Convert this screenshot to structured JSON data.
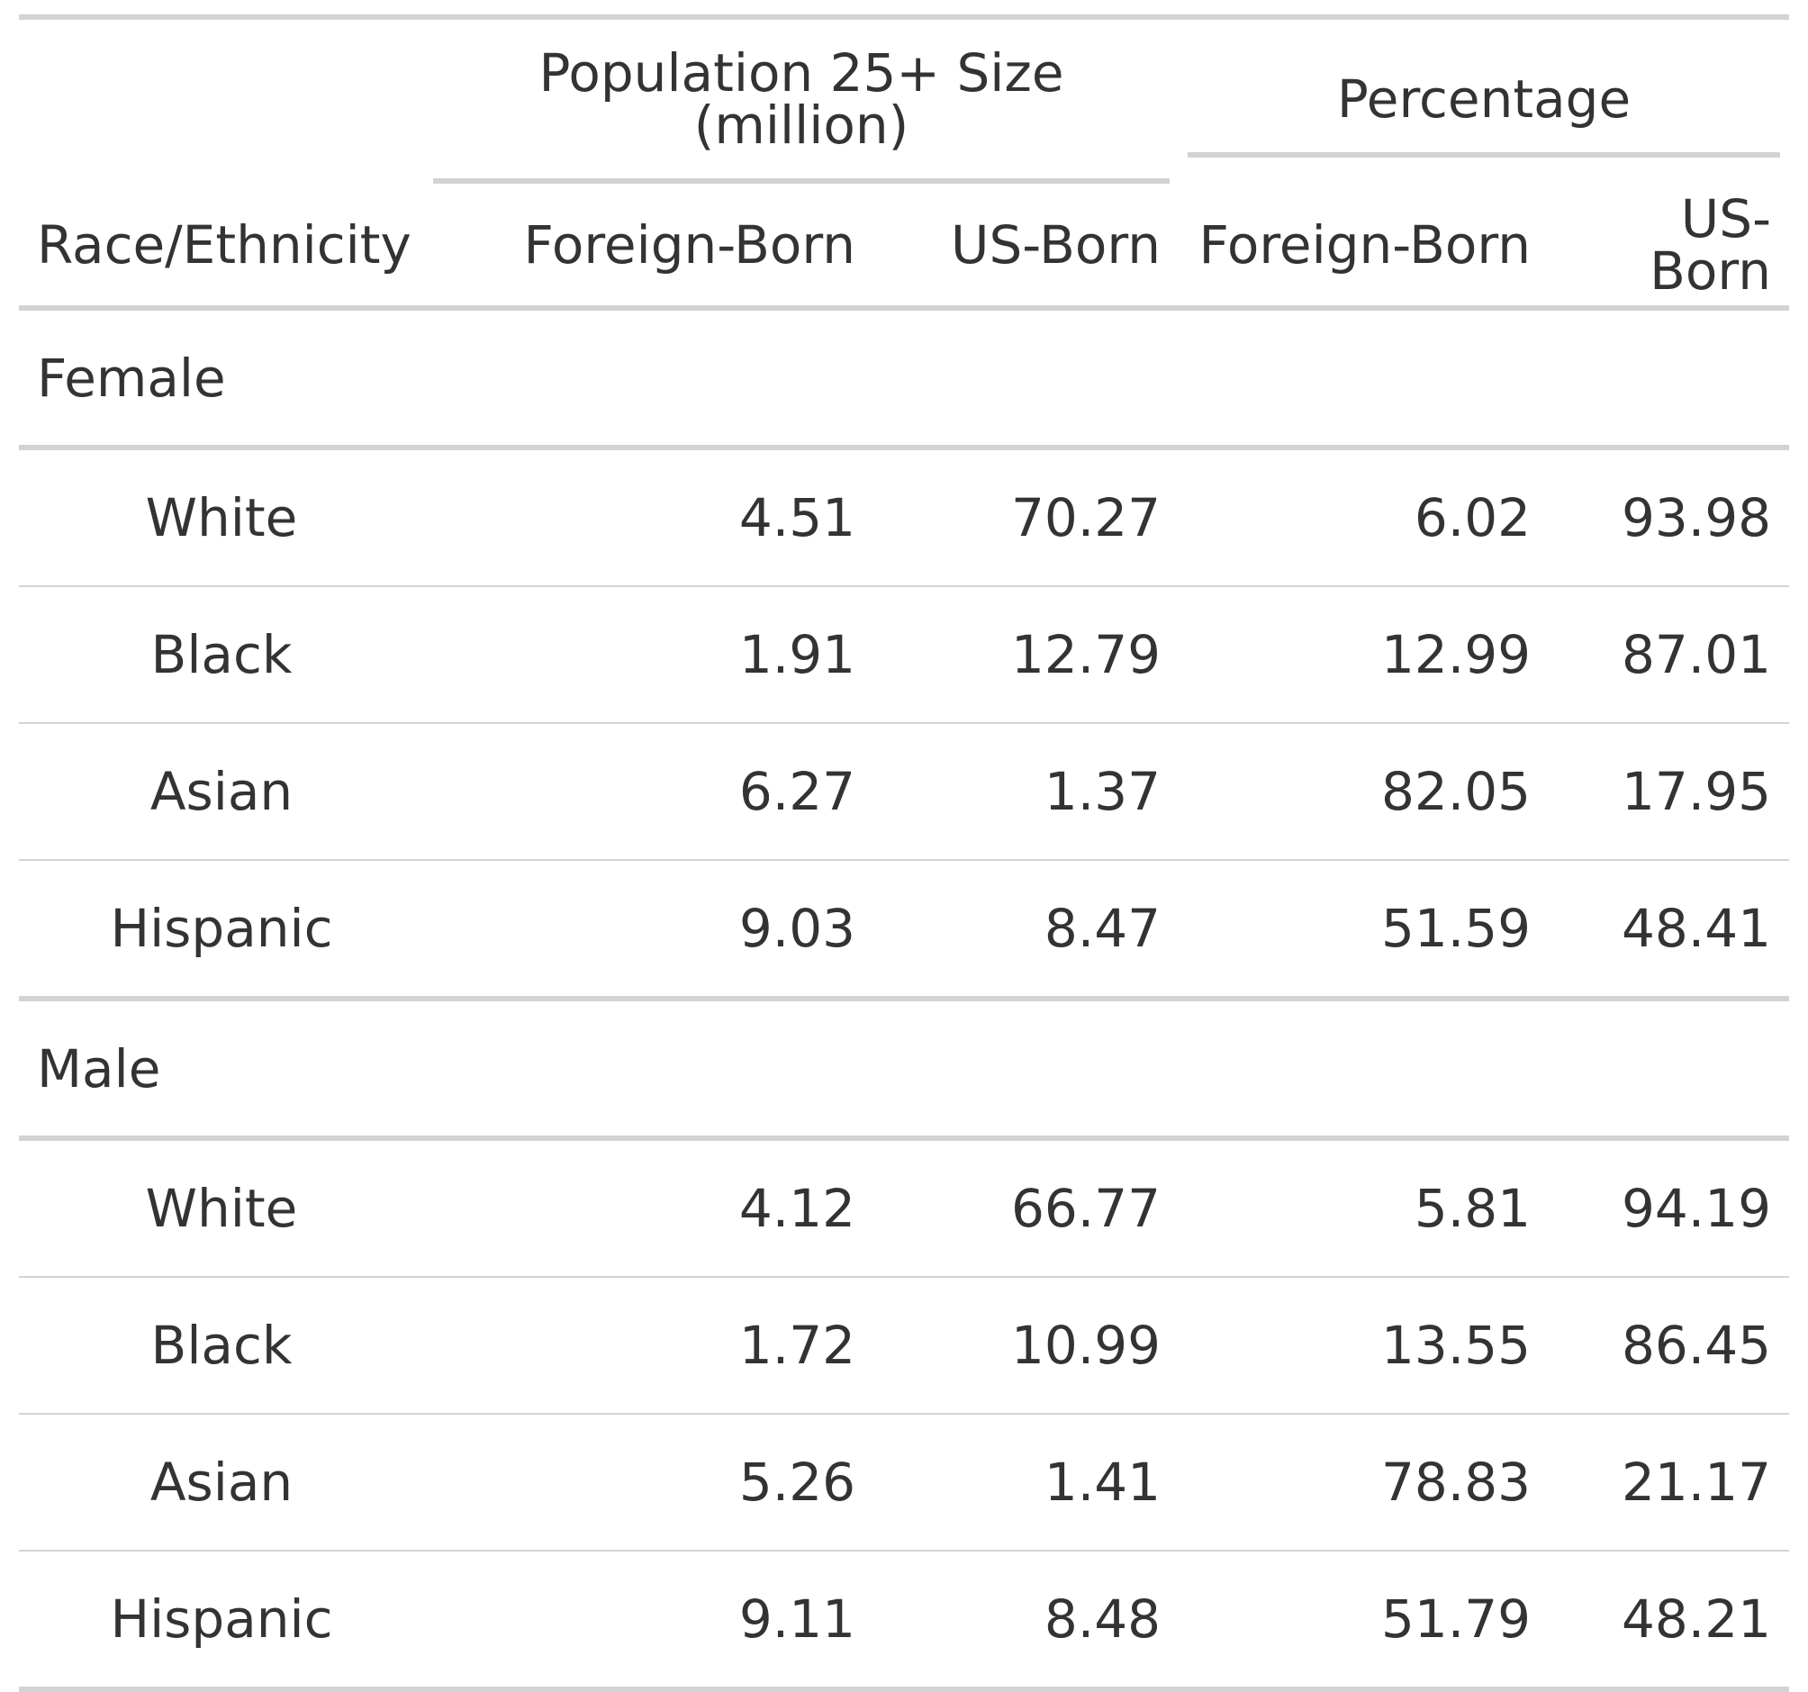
{
  "table": {
    "spanners": {
      "population": "Population 25+ Size (million)",
      "percentage": "Percentage"
    },
    "columns": {
      "race": "Race/Ethnicity",
      "pop_foreign": "Foreign-Born",
      "pop_us": "US-Born",
      "pct_foreign": "Foreign-Born",
      "pct_us": "US-Born"
    },
    "groups": [
      {
        "name": "Female",
        "rows": [
          {
            "race": "White",
            "pop_foreign": "4.51",
            "pop_us": "70.27",
            "pct_foreign": "6.02",
            "pct_us": "93.98"
          },
          {
            "race": "Black",
            "pop_foreign": "1.91",
            "pop_us": "12.79",
            "pct_foreign": "12.99",
            "pct_us": "87.01"
          },
          {
            "race": "Asian",
            "pop_foreign": "6.27",
            "pop_us": "1.37",
            "pct_foreign": "82.05",
            "pct_us": "17.95"
          },
          {
            "race": "Hispanic",
            "pop_foreign": "9.03",
            "pop_us": "8.47",
            "pct_foreign": "51.59",
            "pct_us": "48.41"
          }
        ]
      },
      {
        "name": "Male",
        "rows": [
          {
            "race": "White",
            "pop_foreign": "4.12",
            "pop_us": "66.77",
            "pct_foreign": "5.81",
            "pct_us": "94.19"
          },
          {
            "race": "Black",
            "pop_foreign": "1.72",
            "pop_us": "10.99",
            "pct_foreign": "13.55",
            "pct_us": "86.45"
          },
          {
            "race": "Asian",
            "pop_foreign": "5.26",
            "pop_us": "1.41",
            "pct_foreign": "78.83",
            "pct_us": "21.17"
          },
          {
            "race": "Hispanic",
            "pop_foreign": "9.11",
            "pop_us": "8.48",
            "pct_foreign": "51.79",
            "pct_us": "48.21"
          }
        ]
      }
    ]
  }
}
